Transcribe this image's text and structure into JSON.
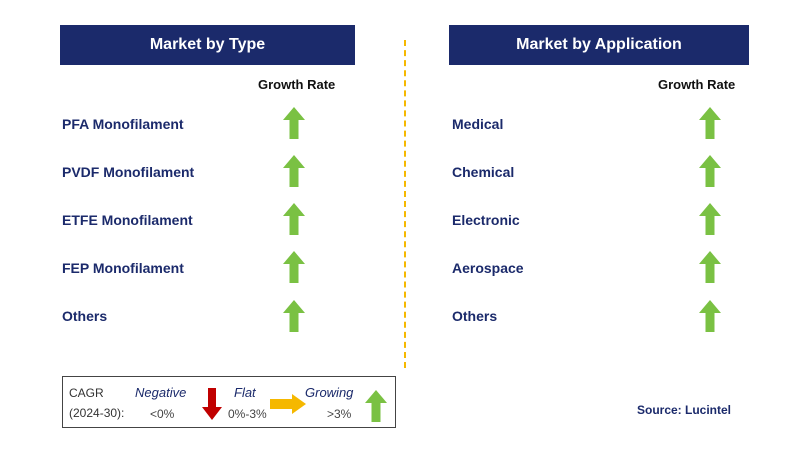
{
  "left_panel": {
    "title": "Market by Type",
    "growth_header": "Growth Rate",
    "items": [
      "PFA Monofilament",
      "PVDF Monofilament",
      "ETFE Monofilament",
      "FEP Monofilament",
      "Others"
    ]
  },
  "right_panel": {
    "title": "Market by Application",
    "growth_header": "Growth Rate",
    "items": [
      "Medical",
      "Chemical",
      "Electronic",
      "Aerospace",
      "Others"
    ]
  },
  "legend": {
    "cagr_line1": "CAGR",
    "cagr_line2": "(2024-30):",
    "negative_label": "Negative",
    "negative_range": "<0%",
    "flat_label": "Flat",
    "flat_range": "0%-3%",
    "growing_label": "Growing",
    "growing_range": ">3%"
  },
  "source": "Source: Lucintel",
  "colors": {
    "header_bg": "#1b2a6b",
    "arrow_green": "#7ac143",
    "arrow_red": "#c00000",
    "arrow_yellow": "#f5b800",
    "divider": "#f5b800"
  }
}
